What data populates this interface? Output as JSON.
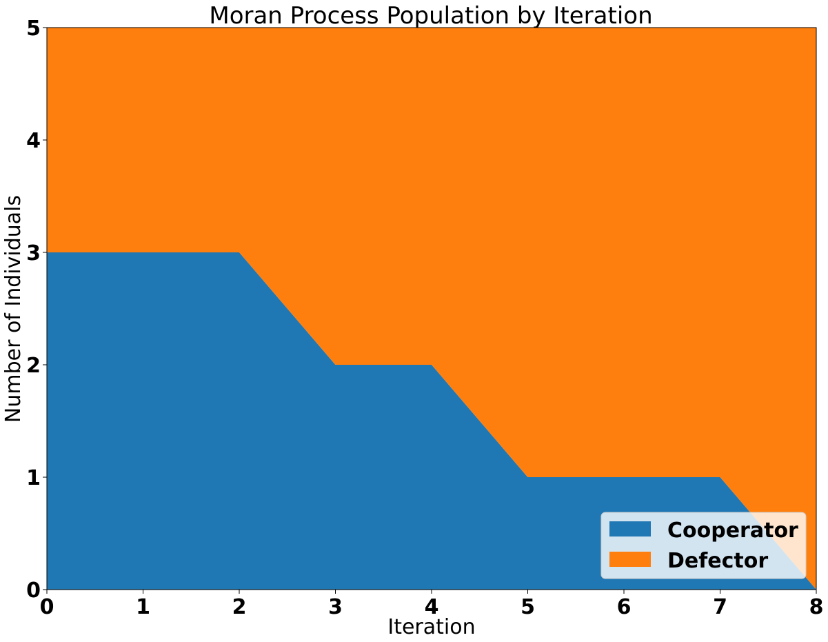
{
  "chart_data": {
    "type": "area",
    "stacked": true,
    "title": "Moran Process Population by Iteration",
    "xlabel": "Iteration",
    "ylabel": "Number of Individuals",
    "x": [
      0,
      1,
      2,
      3,
      4,
      5,
      6,
      7,
      8
    ],
    "xlim": [
      0,
      8
    ],
    "ylim": [
      0,
      5
    ],
    "xticks": [
      "0",
      "1",
      "2",
      "3",
      "4",
      "5",
      "6",
      "7",
      "8"
    ],
    "yticks": [
      "0",
      "1",
      "2",
      "3",
      "4",
      "5"
    ],
    "series": [
      {
        "name": "Cooperator",
        "values": [
          3,
          3,
          3,
          2,
          2,
          1,
          1,
          1,
          0
        ],
        "color": "#1f77b4"
      },
      {
        "name": "Defector",
        "values": [
          2,
          2,
          2,
          3,
          3,
          4,
          4,
          4,
          5
        ],
        "color": "#ff7f0e"
      }
    ],
    "legend_position": "lower-right",
    "grid": false
  }
}
